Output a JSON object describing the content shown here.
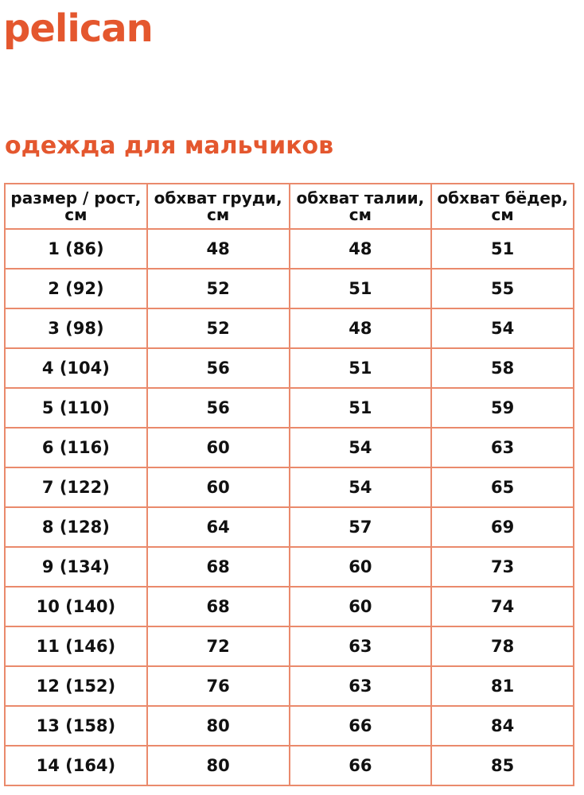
{
  "brand": {
    "logo": "pelican",
    "color": "#e4572e"
  },
  "title": "одежда для мальчиков",
  "table": {
    "headers": [
      "размер / рост, см",
      "обхват груди, см",
      "обхват талии, см",
      "обхват бёдер, см"
    ],
    "rows": [
      [
        "1 (86)",
        "48",
        "48",
        "51"
      ],
      [
        "2 (92)",
        "52",
        "51",
        "55"
      ],
      [
        "3 (98)",
        "52",
        "48",
        "54"
      ],
      [
        "4 (104)",
        "56",
        "51",
        "58"
      ],
      [
        "5 (110)",
        "56",
        "51",
        "59"
      ],
      [
        "6 (116)",
        "60",
        "54",
        "63"
      ],
      [
        "7 (122)",
        "60",
        "54",
        "65"
      ],
      [
        "8 (128)",
        "64",
        "57",
        "69"
      ],
      [
        "9 (134)",
        "68",
        "60",
        "73"
      ],
      [
        "10 (140)",
        "68",
        "60",
        "74"
      ],
      [
        "11 (146)",
        "72",
        "63",
        "78"
      ],
      [
        "12 (152)",
        "76",
        "63",
        "81"
      ],
      [
        "13 (158)",
        "80",
        "66",
        "84"
      ],
      [
        "14 (164)",
        "80",
        "66",
        "85"
      ]
    ]
  }
}
